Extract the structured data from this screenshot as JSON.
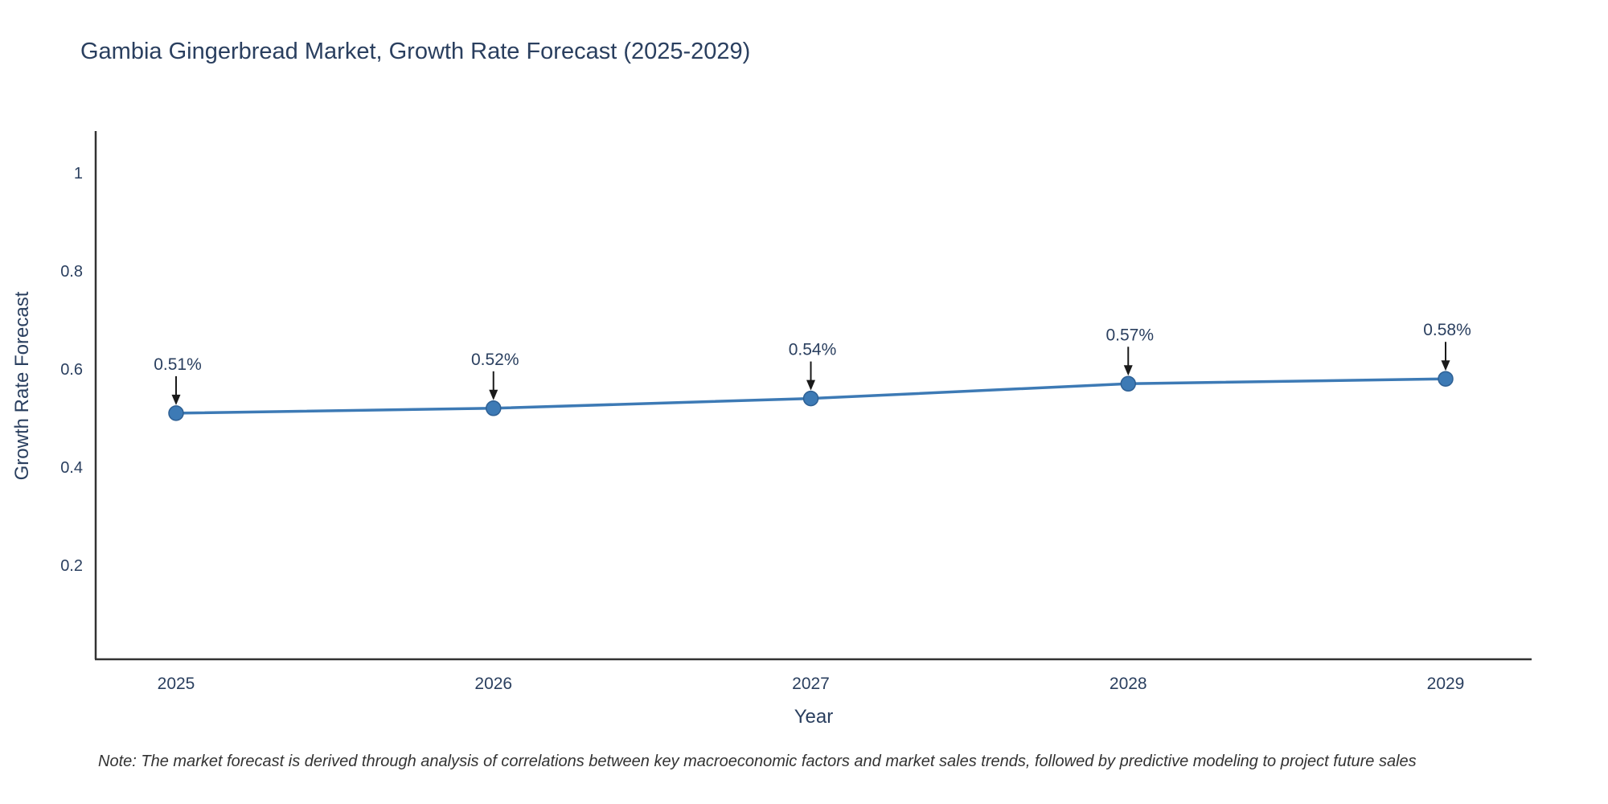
{
  "page": {
    "background": "#ffffff"
  },
  "chart_data": {
    "type": "line",
    "title": "Gambia Gingerbread Market, Growth Rate Forecast (2025-2029)",
    "xlabel": "Year",
    "ylabel": "Growth Rate Forecast",
    "x": [
      "2025",
      "2026",
      "2027",
      "2028",
      "2029"
    ],
    "y": [
      0.51,
      0.52,
      0.54,
      0.57,
      0.58
    ],
    "annotations": [
      "0.51%",
      "0.52%",
      "0.54%",
      "0.57%",
      "0.58%"
    ],
    "yticks": [
      0.2,
      0.4,
      0.6,
      0.8,
      1
    ],
    "ylim": [
      0,
      1.1
    ],
    "grid": false,
    "legend": "none",
    "line_color": "#3d7ab5",
    "marker_color": "#3d7ab5",
    "marker_edge_color": "#2e6094",
    "arrow_color": "#1a1a1a",
    "axis_color": "#333333",
    "text_color": "#2a3f5f"
  },
  "note": "Note: The market forecast is derived through analysis of correlations between key macroeconomic factors and market sales trends, followed by predictive modeling to project future sales"
}
